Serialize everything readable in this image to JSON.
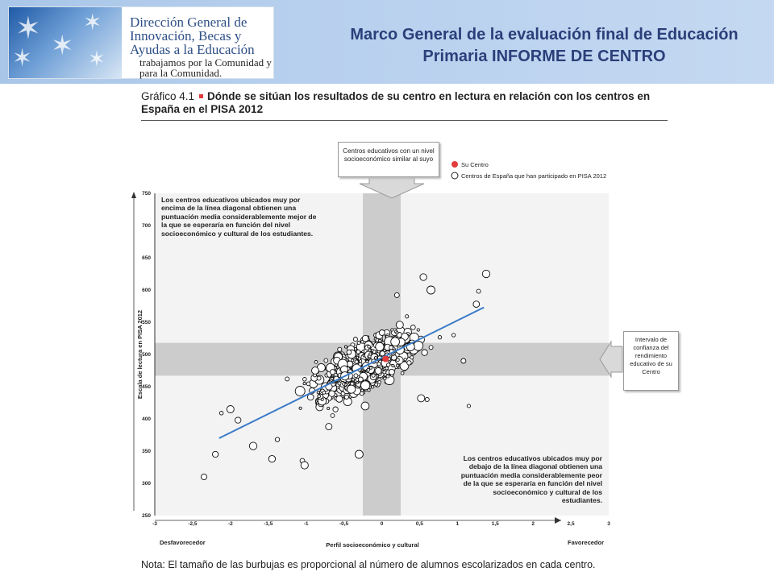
{
  "header": {
    "logo_text": "Dirección General de Innovación, Becas y Ayudas a la Educación",
    "logo_tagline": "trabajamos por la Comunidad y para la Comunidad.",
    "title": "Marco General de la evaluación final de Educación Primaria INFORME DE CENTRO"
  },
  "figure": {
    "number": "Gráfico 4.1",
    "title": "Dónde se sitúan los resultados de su centro en lectura en relación con los centros en España en el PISA 2012",
    "note": "Nota: El tamaño de las burbujas es proporcional al número de alumnos escolarizados en cada centro."
  },
  "annotations": {
    "callout_top": "Centros educativos con un nivel socioeconómico similar al suyo",
    "callout_right": "Intervalo de confianza del rendimiento educativo de su Centro",
    "text_upper_left": "Los centros educativos ubicados muy por encima de la línea diagonal obtienen una puntuación media considerablemente mejor de la que se esperaría en función del nivel socioeconómico y cultural de los estudiantes.",
    "text_lower_right": "Los centros educativos ubicados muy por debajo de la línea diagonal obtienen una puntuación media considerablemente peor de la que se esperaría en función del nivel socioeconómico y cultural de los estudiantes.",
    "x_left_label": "Desfavorecedor",
    "x_right_label": "Favorecedor"
  },
  "chart_data": {
    "type": "scatter",
    "xlabel": "Perfil socioeconómico y cultural",
    "ylabel": "Escala de lectura en PISA 2012",
    "xlim": [
      -3,
      3
    ],
    "ylim": [
      250,
      750
    ],
    "xticks": [
      "-3",
      "-2,5",
      "-2",
      "-1,5",
      "-1",
      "-0,5",
      "0",
      "0,5",
      "1",
      "1,5",
      "2",
      "2,5",
      "3"
    ],
    "yticks": [
      "250",
      "300",
      "350",
      "400",
      "450",
      "500",
      "550",
      "600",
      "650",
      "700",
      "750"
    ],
    "legend": [
      {
        "name": "Su Centro",
        "color": "#e23b3b"
      },
      {
        "name": "Centros de España que han participado en PISA 2012",
        "color": "#ffffff"
      }
    ],
    "your_center": {
      "x": 0.05,
      "y": 493
    },
    "regression_line": {
      "x": [
        -2.15,
        1.35
      ],
      "y": [
        370,
        573
      ]
    },
    "vertical_band": {
      "x": [
        -0.25,
        0.25
      ]
    },
    "horizontal_band": {
      "y": [
        467,
        518
      ]
    },
    "n_points_approx": 950,
    "sample_points": [
      {
        "x": -2.35,
        "y": 310
      },
      {
        "x": -2.2,
        "y": 345
      },
      {
        "x": -2.12,
        "y": 409
      },
      {
        "x": -2.0,
        "y": 415
      },
      {
        "x": -1.9,
        "y": 398
      },
      {
        "x": -1.7,
        "y": 358
      },
      {
        "x": -1.45,
        "y": 338
      },
      {
        "x": -1.38,
        "y": 368
      },
      {
        "x": -1.25,
        "y": 462
      },
      {
        "x": -1.05,
        "y": 335
      },
      {
        "x": -1.02,
        "y": 328
      },
      {
        "x": -0.88,
        "y": 475
      },
      {
        "x": -0.7,
        "y": 388
      },
      {
        "x": -0.65,
        "y": 405
      },
      {
        "x": -0.3,
        "y": 345
      },
      {
        "x": -0.22,
        "y": 420
      },
      {
        "x": 0.2,
        "y": 592
      },
      {
        "x": 0.55,
        "y": 620
      },
      {
        "x": 0.65,
        "y": 600
      },
      {
        "x": 0.52,
        "y": 432
      },
      {
        "x": 0.6,
        "y": 430
      },
      {
        "x": 1.08,
        "y": 490
      },
      {
        "x": 1.15,
        "y": 420
      },
      {
        "x": 1.25,
        "y": 578
      },
      {
        "x": 1.28,
        "y": 598
      },
      {
        "x": 1.38,
        "y": 625
      },
      {
        "x": 0.95,
        "y": 530
      },
      {
        "x": -0.6,
        "y": 462
      }
    ]
  },
  "colors": {
    "header_band": "#b7d0ee",
    "band_gray": "#cccccc",
    "regression_line": "#3a7bc8",
    "your_center": "#e23b3b",
    "title_blue": "#2b3f7a"
  }
}
